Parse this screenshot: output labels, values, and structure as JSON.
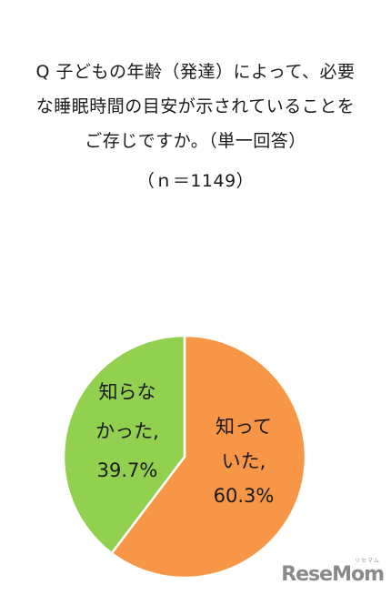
{
  "question": {
    "lines": [
      "Q 子どもの年齢（発達）によって、必要",
      "な睡眠時間の目安が示されていることを",
      "ご存じですか。（単一回答）"
    ],
    "sample": "（ｎ＝1149）"
  },
  "chart_data": {
    "type": "pie",
    "slices": [
      {
        "label_lines": [
          "知って",
          "いた,",
          "60.3%"
        ],
        "value": 60.3,
        "color": "#F79646"
      },
      {
        "label_lines": [
          "知らな",
          "かった,",
          "39.7%"
        ],
        "value": 39.7,
        "color": "#92D050"
      }
    ]
  },
  "logo": {
    "text": "ReseMom",
    "kana": "リセマム"
  }
}
